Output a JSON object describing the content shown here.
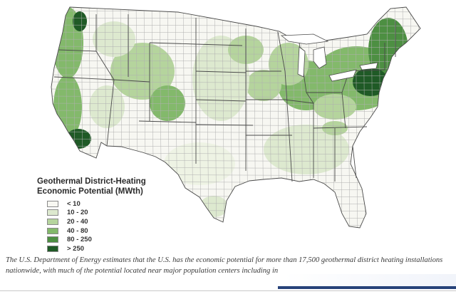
{
  "map": {
    "legend": {
      "title_line1": "Geothermal District-Heating",
      "title_line2": "Economic Potential (MWth)",
      "items": [
        {
          "label": "< 10",
          "color": "#f7f7f2"
        },
        {
          "label": "10 - 20",
          "color": "#dde9cf"
        },
        {
          "label": "20 - 40",
          "color": "#b5d49d"
        },
        {
          "label": "40 - 80",
          "color": "#83b96b"
        },
        {
          "label": "80 - 250",
          "color": "#4d8f42"
        },
        {
          "label": "> 250",
          "color": "#1f5a26"
        }
      ]
    },
    "colors": {
      "background": "#ffffff",
      "county_border": "#b0b0b0",
      "state_border": "#4a4a4a"
    }
  },
  "caption": {
    "line1": "The U.S. Department of Energy estimates that the U.S. has the economic potential for more than 17,500 geothermal district heating installations",
    "line2": "nationwide, with much of the potential located near major population centers including in"
  }
}
